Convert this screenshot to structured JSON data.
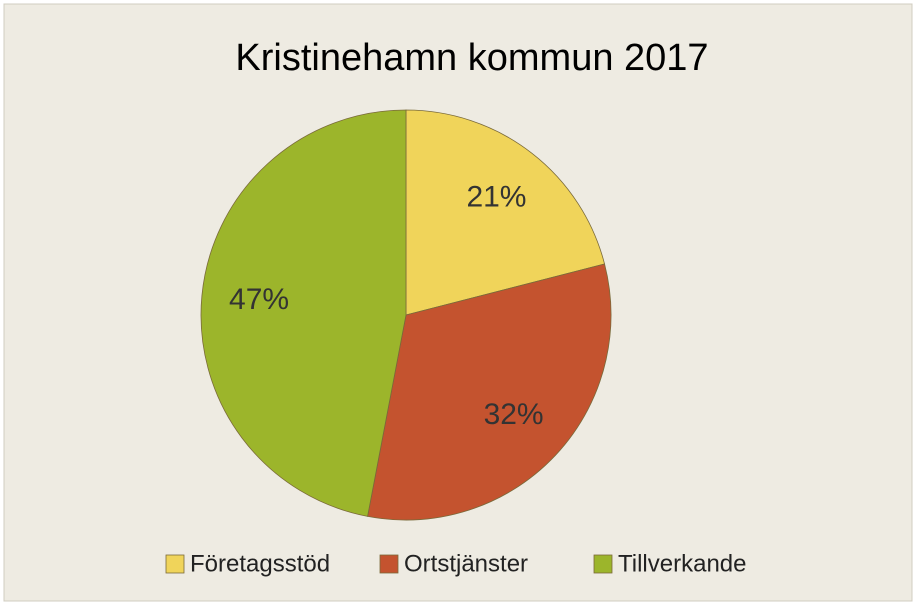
{
  "chart_data": {
    "type": "pie",
    "title": "Kristinehamn kommun 2017",
    "categories": [
      "Företagsstöd",
      "Ortstjänster",
      "Tillverkande"
    ],
    "values": [
      21,
      32,
      47
    ],
    "value_labels": [
      "21%",
      "32%",
      "47%"
    ],
    "colors": [
      "#f0d45a",
      "#c4532f",
      "#9cb52b"
    ],
    "legend": "bottom"
  }
}
